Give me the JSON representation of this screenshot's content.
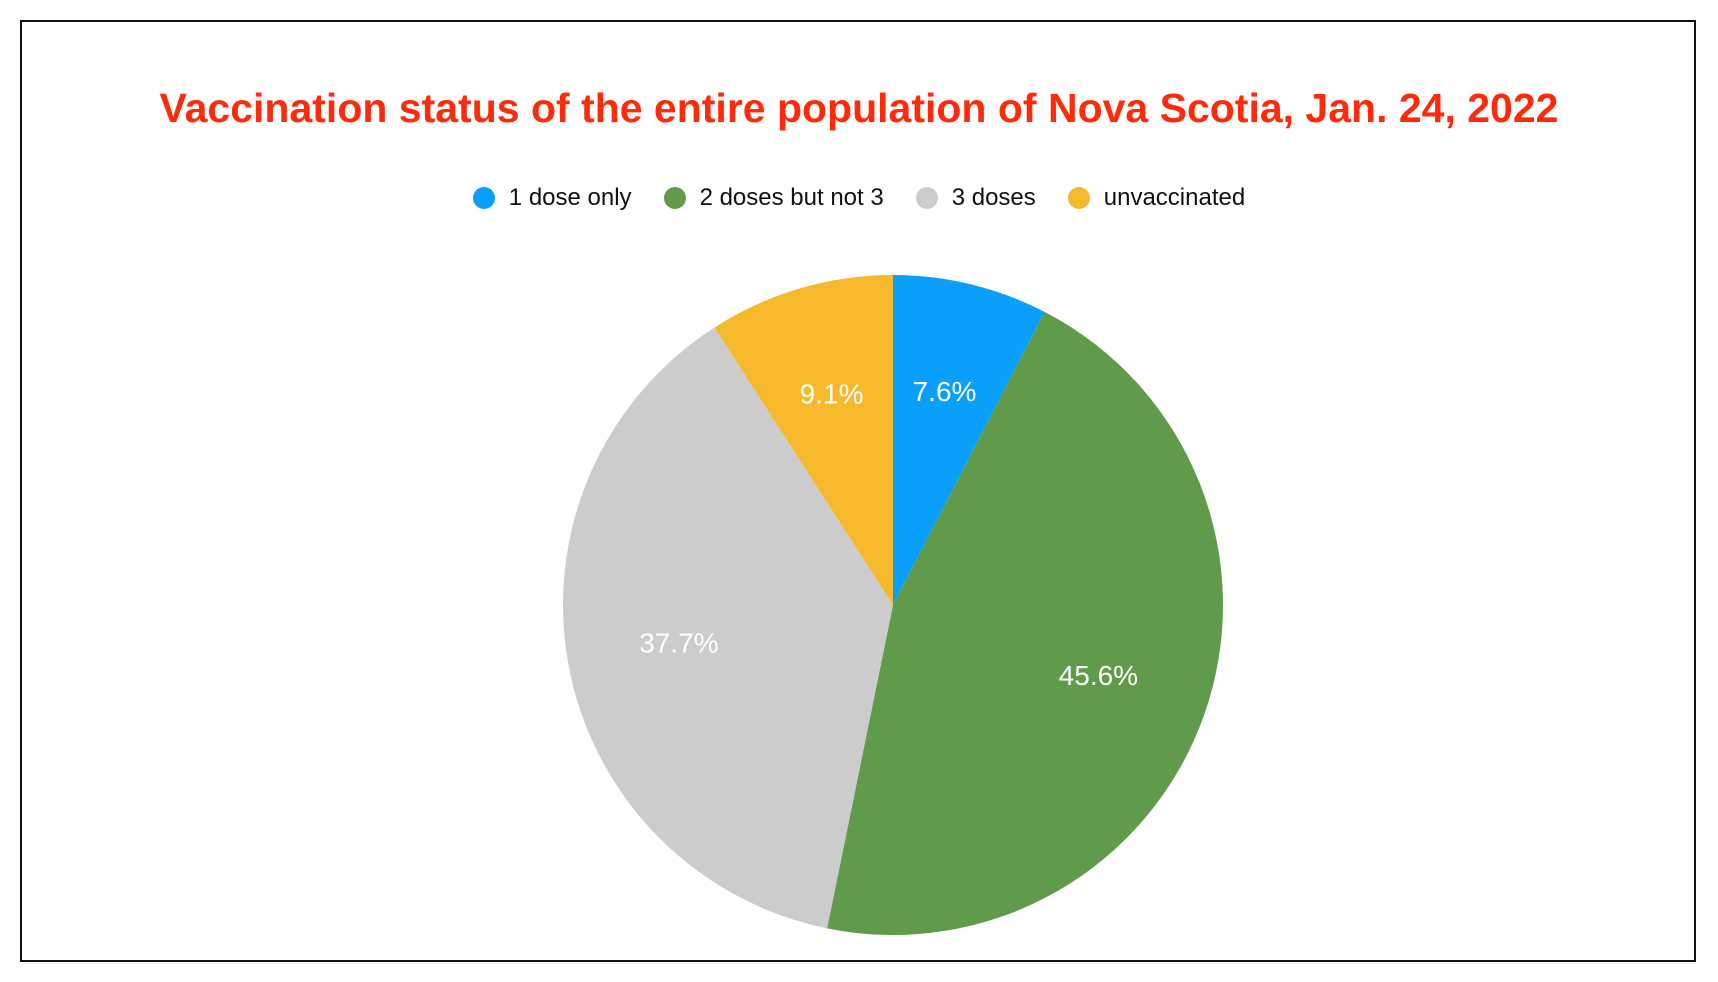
{
  "chart_data": {
    "type": "pie",
    "title": "Vaccination status of the entire population of Nova Scotia, Jan. 24, 2022",
    "legend_placement": "top",
    "slices": [
      {
        "label": "1 dose only",
        "value": 7.6,
        "display": "7.6%",
        "color": "#0a9ffb"
      },
      {
        "label": "2 doses but not 3",
        "value": 45.6,
        "display": "45.6%",
        "color": "#5f9b4b"
      },
      {
        "label": "3 doses",
        "value": 37.7,
        "display": "37.7%",
        "color": "#cccccc"
      },
      {
        "label": "unvaccinated",
        "value": 9.1,
        "display": "9.1%",
        "color": "#f7b92c"
      }
    ]
  }
}
